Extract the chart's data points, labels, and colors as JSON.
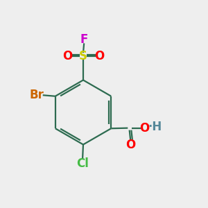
{
  "background_color": "#eeeeee",
  "fig_size": [
    3.0,
    3.0
  ],
  "dpi": 100,
  "colors": {
    "bond": "#2d6b50",
    "O": "#ff0000",
    "S": "#cccc00",
    "F": "#cc00cc",
    "Br": "#cc6600",
    "Cl": "#44bb44",
    "H": "#558899"
  },
  "bond_lw": 1.6,
  "font_size": 12
}
